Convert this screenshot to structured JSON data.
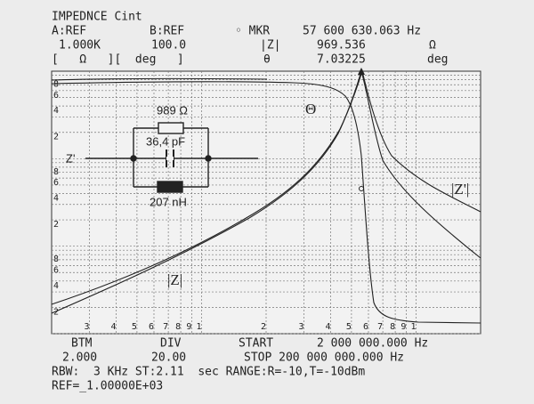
{
  "header": {
    "title": "IMPEDNCE Cint",
    "row1": [
      "A:REF",
      "B:REF",
      "◦ MKR",
      "57 600 630.063 Hz"
    ],
    "row2": [
      "1.000K",
      "100.0",
      "|Z|",
      "969.536",
      "Ω"
    ],
    "row3": [
      "[   Ω   ][  deg   ]",
      "θ",
      "7.03225",
      "deg"
    ]
  },
  "plot": {
    "left_labels": [
      "8",
      "6",
      "4",
      "2",
      "8",
      "6",
      "4",
      "2",
      "8",
      "6",
      "4",
      "2"
    ],
    "bottom_labels": [
      "3",
      "4",
      "5",
      "6",
      "7",
      "8",
      "9",
      "1",
      "2",
      "3",
      "4",
      "5",
      "6",
      "7",
      "8",
      "9",
      "1"
    ],
    "curve_labels": {
      "theta": "Θ",
      "z": "|Z|",
      "z_prime": "|Z'|"
    }
  },
  "circuit": {
    "resistor": "989 Ω",
    "capacitor": "36,4 pF",
    "inductor": "207 nH",
    "port": "Z'"
  },
  "footer": {
    "row1": [
      "BTM",
      "DIV",
      "START",
      "2 000 000.000 Hz"
    ],
    "row2": [
      "2.000",
      "20.00",
      "STOP 200 000 000.000 Hz"
    ],
    "row3": "RBW:  3 KHz ST:2.11  sec RANGE:R=-10,T=-10dBm",
    "row4": "REF=_1.00000E+03"
  }
}
